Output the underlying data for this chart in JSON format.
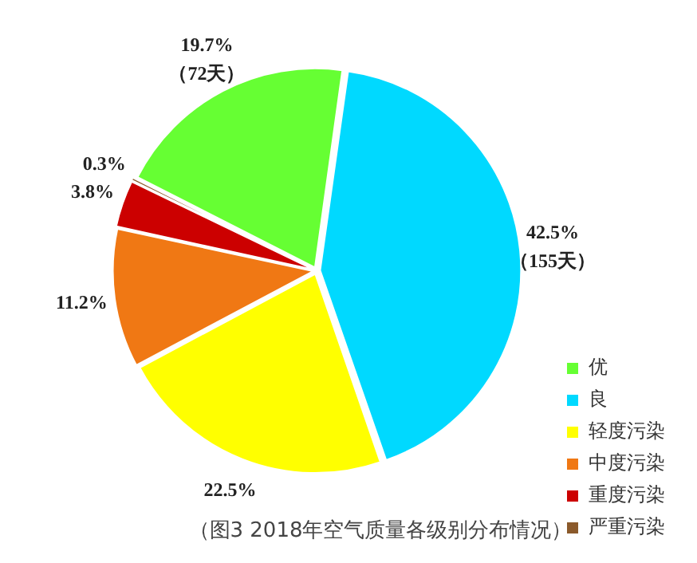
{
  "chart_data": {
    "type": "pie",
    "title": "（图3 2018年空气质量各级别分布情况）",
    "categories": [
      "优",
      "良",
      "轻度污染",
      "中度污染",
      "重度污染",
      "严重污染"
    ],
    "values": [
      19.7,
      42.5,
      22.5,
      11.2,
      3.8,
      0.3
    ],
    "colors": [
      "#66ff33",
      "#00d9ff",
      "#ffff00",
      "#f07814",
      "#cc0000",
      "#8b5a2b"
    ],
    "value_labels": [
      "19.7%\n（72天）",
      "42.5%\n（155天）",
      "22.5%",
      "11.2%",
      "3.8%",
      "0.3%"
    ],
    "legend": "bottom right"
  }
}
